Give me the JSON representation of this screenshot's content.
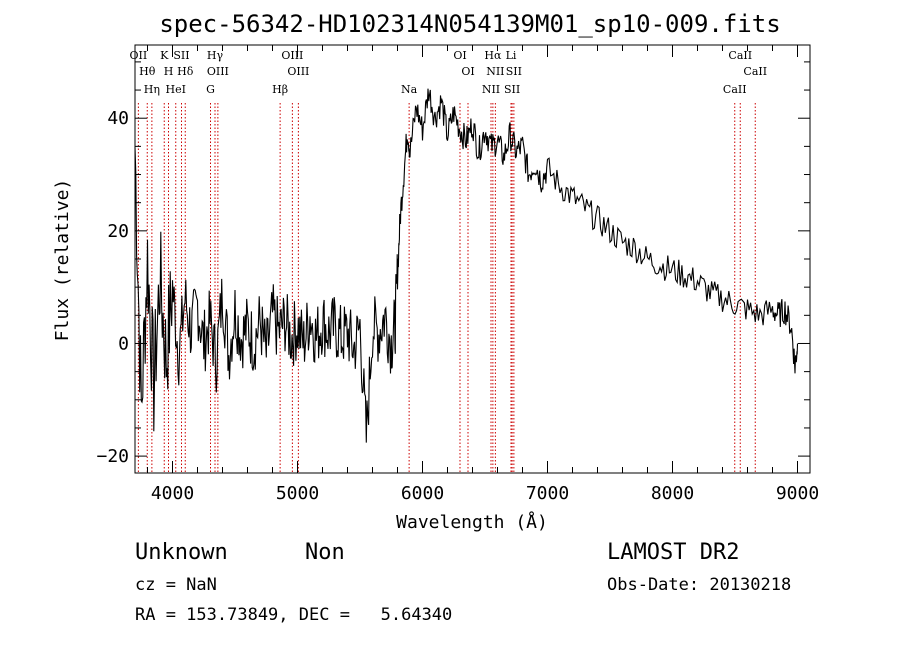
{
  "chart_data": {
    "type": "line",
    "title": "spec-56342-HD102314N054139M01_sp10-009.fits",
    "xlabel": "Wavelength (Å)",
    "ylabel": "Flux (relative)",
    "xlim": [
      3700,
      9100
    ],
    "ylim": [
      -23,
      53
    ],
    "xticks": [
      "4000",
      "5000",
      "6000",
      "7000",
      "8000",
      "9000"
    ],
    "yticks": [
      "−20",
      "0",
      "20",
      "40"
    ],
    "xtick_values": [
      4000,
      5000,
      6000,
      7000,
      8000,
      9000
    ],
    "ytick_values": [
      -20,
      0,
      20,
      40
    ],
    "grid": false,
    "line_color": "#000000",
    "marker_color": "#cc0000",
    "series": [
      {
        "x": [
          3700,
          3750,
          3800,
          3850,
          3900,
          3950,
          4000,
          4050,
          4100,
          4150,
          4200,
          4250,
          4300,
          4350,
          4400,
          4450,
          4500,
          4550,
          4600,
          4650,
          4700,
          4750,
          4800,
          4850,
          4900,
          4950,
          5000,
          5050,
          5100,
          5150,
          5200,
          5250,
          5300,
          5350,
          5400,
          5450,
          5500,
          5550,
          5600,
          5650,
          5700,
          5750,
          5780,
          5800,
          5820,
          5850,
          5880,
          5900,
          5950,
          6000,
          6050,
          6100,
          6150,
          6200,
          6250,
          6300,
          6350,
          6400,
          6450,
          6500,
          6550,
          6600,
          6650,
          6700,
          6750,
          6800,
          6850,
          6900,
          6950,
          7000,
          7100,
          7200,
          7300,
          7400,
          7500,
          7600,
          7700,
          7800,
          7900,
          8000,
          8100,
          8200,
          8300,
          8400,
          8500,
          8600,
          8700,
          8800,
          8850,
          8900,
          8950,
          8980,
          9000
        ],
        "y": [
          35,
          -12,
          15,
          -8,
          12,
          -3,
          10,
          -2,
          8,
          2,
          7,
          0,
          4,
          -3,
          9,
          -2,
          6,
          1,
          3,
          0,
          4,
          -2,
          5,
          2,
          4,
          1,
          3,
          0,
          5,
          1,
          4,
          2,
          3,
          1,
          2,
          -1,
          3,
          -17,
          3,
          2,
          5,
          0,
          3,
          12,
          22,
          30,
          38,
          34,
          42,
          38,
          45,
          40,
          43,
          37,
          41,
          38,
          36,
          39,
          34,
          38,
          35,
          36,
          33,
          37,
          34,
          35,
          30,
          32,
          29,
          31,
          28,
          26,
          24,
          22,
          20,
          18,
          17,
          15,
          14,
          13,
          12,
          11,
          9,
          8,
          7,
          6,
          5,
          6,
          5,
          6,
          3,
          -4,
          0
        ]
      }
    ],
    "lines": {
      "OII": 3727,
      "Hθ": 3798,
      "Hη": 3835,
      "K": 3934,
      "H": 3968,
      "HeI": 4026,
      "SII": 4072,
      "Hδ": 4102,
      "G": 4304,
      "Hγ": 4340,
      "OIII_a": 4363,
      "Hβ": 4861,
      "OIII_b": 4959,
      "OIII_c": 5007,
      "Na": 5893,
      "OI_a": 6300,
      "OI_b": 6364,
      "NII_a": 6548,
      "Hα": 6563,
      "NII_b": 6583,
      "SII_a": 6717,
      "Li": 6708,
      "SII_b": 6731,
      "CaII_a": 8498,
      "CaII_b": 8542,
      "CaII_c": 8662
    },
    "line_labels": {
      "OII": "OII",
      "Hθ": "Hθ",
      "Hη": "Hη",
      "K": "K",
      "H": "H",
      "HeI": "HeI",
      "SII": "SII",
      "Hδ": "Hδ",
      "G": "G",
      "Hγ": "Hγ",
      "OIII_a": "OIII",
      "Hβ": "Hβ",
      "OIII_b": "OIII",
      "OIII_c": "OIII",
      "Na": "Na",
      "OI_a": "OI",
      "OI_b": "OI",
      "NII_a": "NII",
      "Hα": "Hα",
      "NII_b": "NII",
      "SII_a": "SII",
      "Li": "Li",
      "SII_b": "SII",
      "CaII_a": "CaII",
      "CaII_b": "CaII",
      "CaII_c": "CaII"
    }
  },
  "footer": {
    "object_type": "Unknown",
    "subclass": "Non",
    "survey": "LAMOST DR2",
    "cz": "cz = NaN",
    "obs_date": "Obs-Date: 20130218",
    "coords": "RA = 153.73849, DEC =   5.64340"
  }
}
